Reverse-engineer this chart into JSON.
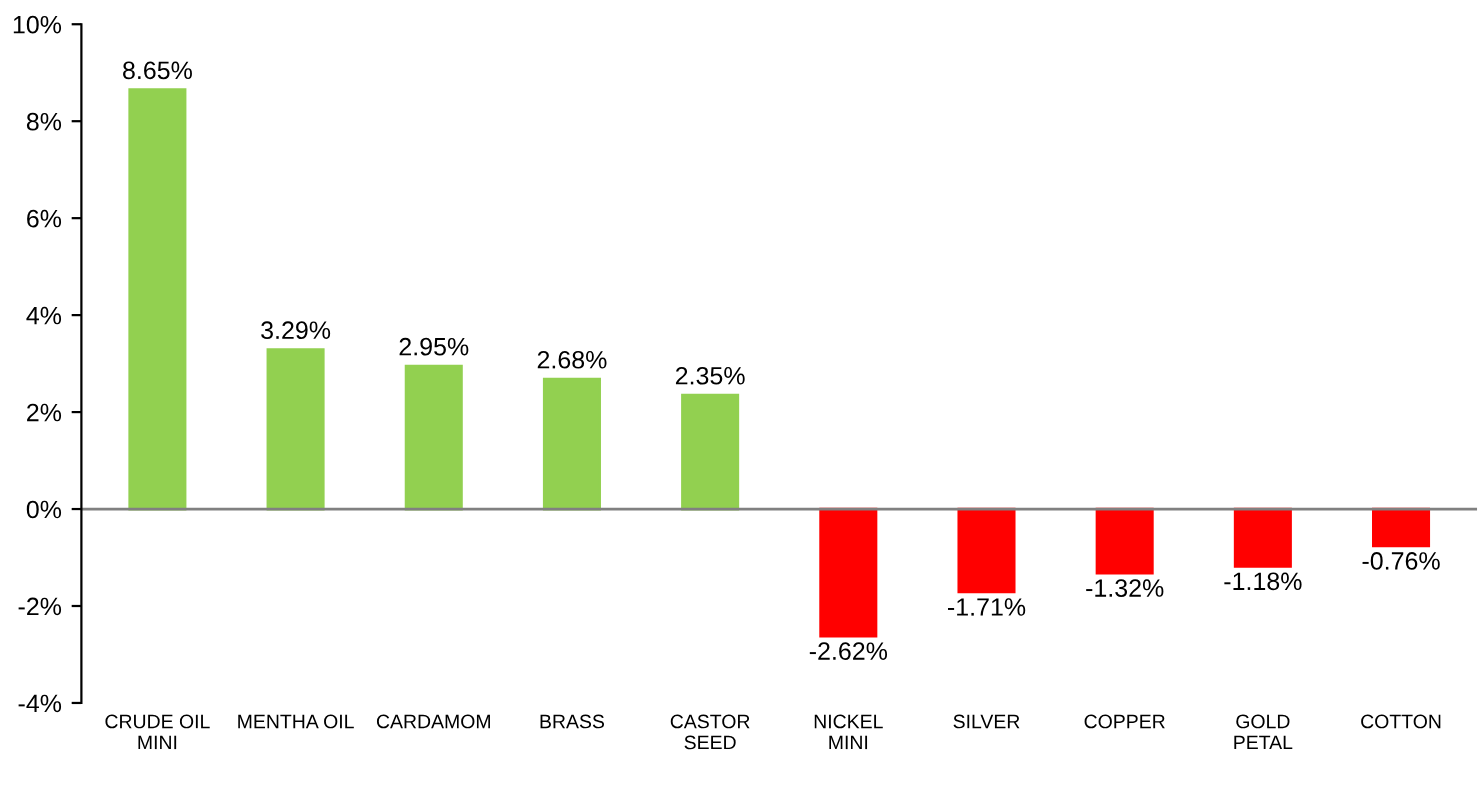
{
  "chart_data": {
    "type": "bar",
    "categories": [
      "CRUDE OIL\nMINI",
      "MENTHA OIL",
      "CARDAMOM",
      "BRASS",
      "CASTOR\nSEED",
      "NICKEL\nMINI",
      "SILVER",
      "COPPER",
      "GOLD\nPETAL",
      "COTTON"
    ],
    "values": [
      8.65,
      3.29,
      2.95,
      2.68,
      2.35,
      -2.62,
      -1.71,
      -1.32,
      -1.18,
      -0.76
    ],
    "colors": [
      "#92d050",
      "#92d050",
      "#92d050",
      "#92d050",
      "#92d050",
      "#ff0000",
      "#ff0000",
      "#ff0000",
      "#ff0000",
      "#ff0000"
    ],
    "value_labels": [
      "8.65%",
      "3.29%",
      "2.95%",
      "2.68%",
      "2.35%",
      "-2.62%",
      "-1.71%",
      "-1.32%",
      "-1.18%",
      "-0.76%"
    ],
    "ylim": [
      -4,
      10
    ],
    "yticks": [
      {
        "value": -4,
        "label": "-4%"
      },
      {
        "value": -2,
        "label": "-2%"
      },
      {
        "value": 0,
        "label": "0%"
      },
      {
        "value": 2,
        "label": "2%"
      },
      {
        "value": 4,
        "label": "4%"
      },
      {
        "value": 6,
        "label": "6%"
      },
      {
        "value": 8,
        "label": "8%"
      },
      {
        "value": 10,
        "label": "10%"
      }
    ],
    "legend": false
  }
}
